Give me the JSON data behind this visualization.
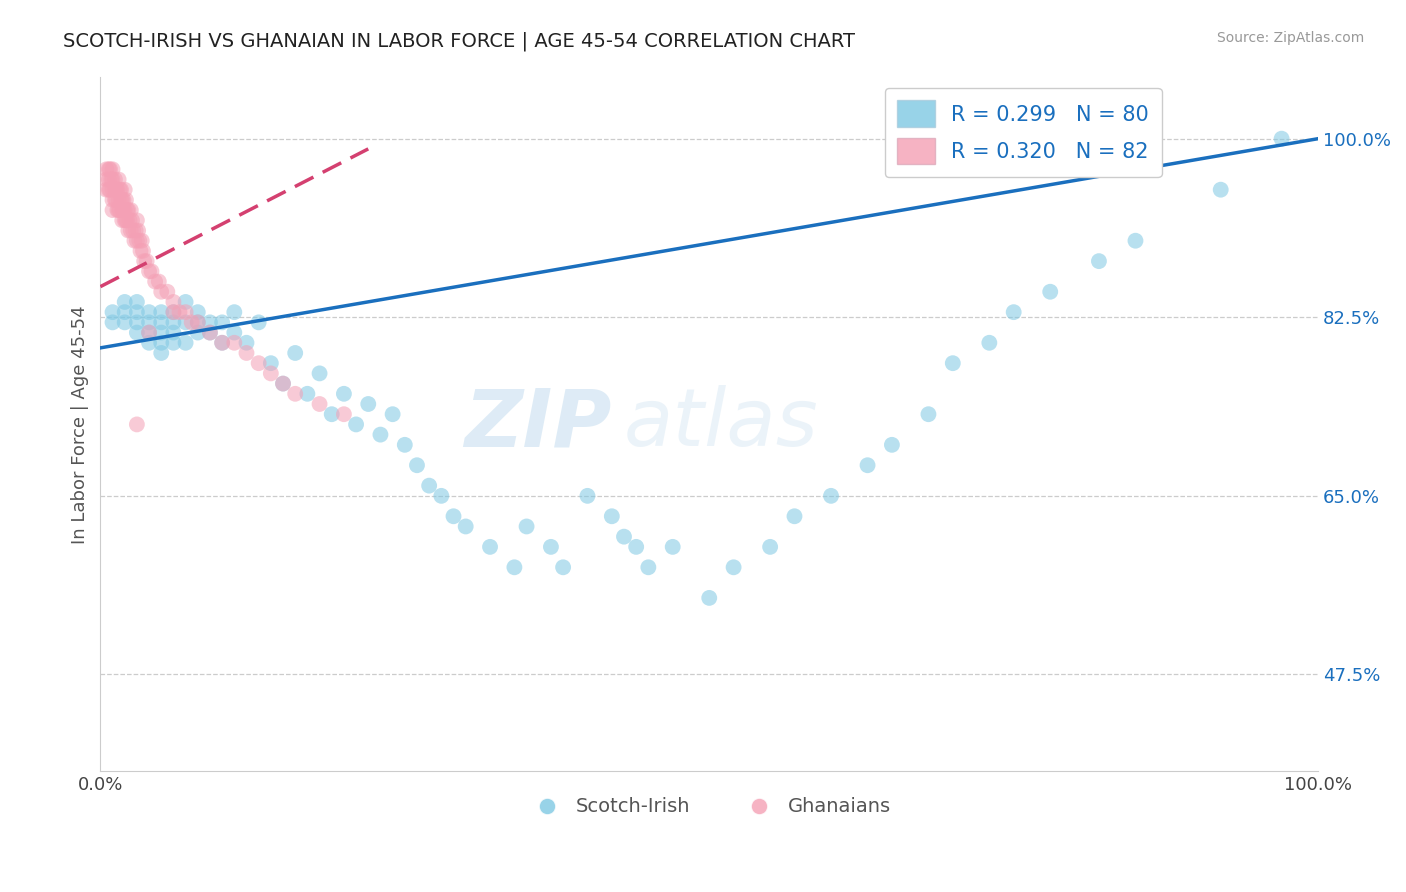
{
  "title": "SCOTCH-IRISH VS GHANAIAN IN LABOR FORCE | AGE 45-54 CORRELATION CHART",
  "source_text": "Source: ZipAtlas.com",
  "ylabel": "In Labor Force | Age 45-54",
  "ytick_labels": [
    "47.5%",
    "65.0%",
    "82.5%",
    "100.0%"
  ],
  "ytick_values": [
    0.475,
    0.65,
    0.825,
    1.0
  ],
  "xlim": [
    0.0,
    1.0
  ],
  "ylim": [
    0.38,
    1.06
  ],
  "blue_color": "#7ec8e3",
  "pink_color": "#f4a0b5",
  "blue_line_color": "#1a6fbe",
  "pink_line_color": "#d44070",
  "R_blue": 0.299,
  "N_blue": 80,
  "R_pink": 0.32,
  "N_pink": 82,
  "watermark_zip": "ZIP",
  "watermark_atlas": "atlas",
  "scotch_irish_x": [
    0.01,
    0.01,
    0.02,
    0.02,
    0.02,
    0.03,
    0.03,
    0.03,
    0.03,
    0.04,
    0.04,
    0.04,
    0.04,
    0.05,
    0.05,
    0.05,
    0.05,
    0.05,
    0.06,
    0.06,
    0.06,
    0.06,
    0.07,
    0.07,
    0.07,
    0.08,
    0.08,
    0.08,
    0.09,
    0.09,
    0.1,
    0.1,
    0.11,
    0.11,
    0.12,
    0.13,
    0.14,
    0.15,
    0.16,
    0.17,
    0.18,
    0.19,
    0.2,
    0.21,
    0.22,
    0.23,
    0.24,
    0.25,
    0.26,
    0.27,
    0.28,
    0.29,
    0.3,
    0.32,
    0.34,
    0.35,
    0.37,
    0.38,
    0.4,
    0.42,
    0.43,
    0.44,
    0.45,
    0.47,
    0.5,
    0.52,
    0.55,
    0.57,
    0.6,
    0.63,
    0.65,
    0.68,
    0.7,
    0.73,
    0.75,
    0.78,
    0.82,
    0.85,
    0.92,
    0.97
  ],
  "scotch_irish_y": [
    0.83,
    0.82,
    0.84,
    0.83,
    0.82,
    0.83,
    0.82,
    0.84,
    0.81,
    0.83,
    0.82,
    0.81,
    0.8,
    0.83,
    0.82,
    0.81,
    0.8,
    0.79,
    0.83,
    0.82,
    0.81,
    0.8,
    0.84,
    0.82,
    0.8,
    0.83,
    0.82,
    0.81,
    0.82,
    0.81,
    0.82,
    0.8,
    0.83,
    0.81,
    0.8,
    0.82,
    0.78,
    0.76,
    0.79,
    0.75,
    0.77,
    0.73,
    0.75,
    0.72,
    0.74,
    0.71,
    0.73,
    0.7,
    0.68,
    0.66,
    0.65,
    0.63,
    0.62,
    0.6,
    0.58,
    0.62,
    0.6,
    0.58,
    0.65,
    0.63,
    0.61,
    0.6,
    0.58,
    0.6,
    0.55,
    0.58,
    0.6,
    0.63,
    0.65,
    0.68,
    0.7,
    0.73,
    0.78,
    0.8,
    0.83,
    0.85,
    0.88,
    0.9,
    0.95,
    1.0
  ],
  "ghanaian_x": [
    0.005,
    0.005,
    0.005,
    0.007,
    0.007,
    0.007,
    0.008,
    0.008,
    0.009,
    0.01,
    0.01,
    0.01,
    0.01,
    0.01,
    0.012,
    0.012,
    0.012,
    0.013,
    0.013,
    0.014,
    0.014,
    0.015,
    0.015,
    0.015,
    0.016,
    0.016,
    0.017,
    0.017,
    0.018,
    0.018,
    0.018,
    0.019,
    0.019,
    0.02,
    0.02,
    0.02,
    0.021,
    0.021,
    0.022,
    0.022,
    0.023,
    0.023,
    0.024,
    0.025,
    0.025,
    0.026,
    0.027,
    0.028,
    0.029,
    0.03,
    0.03,
    0.031,
    0.032,
    0.033,
    0.034,
    0.035,
    0.036,
    0.038,
    0.04,
    0.042,
    0.045,
    0.048,
    0.05,
    0.055,
    0.06,
    0.065,
    0.07,
    0.075,
    0.08,
    0.09,
    0.1,
    0.11,
    0.12,
    0.13,
    0.14,
    0.15,
    0.16,
    0.18,
    0.2,
    0.04,
    0.06,
    0.03
  ],
  "ghanaian_y": [
    0.97,
    0.96,
    0.95,
    0.97,
    0.96,
    0.95,
    0.97,
    0.95,
    0.96,
    0.97,
    0.96,
    0.95,
    0.94,
    0.93,
    0.96,
    0.95,
    0.94,
    0.95,
    0.94,
    0.95,
    0.93,
    0.96,
    0.94,
    0.93,
    0.95,
    0.93,
    0.95,
    0.94,
    0.94,
    0.93,
    0.92,
    0.94,
    0.93,
    0.95,
    0.93,
    0.92,
    0.94,
    0.92,
    0.93,
    0.92,
    0.93,
    0.91,
    0.92,
    0.93,
    0.91,
    0.92,
    0.91,
    0.9,
    0.91,
    0.92,
    0.9,
    0.91,
    0.9,
    0.89,
    0.9,
    0.89,
    0.88,
    0.88,
    0.87,
    0.87,
    0.86,
    0.86,
    0.85,
    0.85,
    0.84,
    0.83,
    0.83,
    0.82,
    0.82,
    0.81,
    0.8,
    0.8,
    0.79,
    0.78,
    0.77,
    0.76,
    0.75,
    0.74,
    0.73,
    0.81,
    0.83,
    0.72
  ],
  "blue_line_x0": 0.0,
  "blue_line_y0": 0.795,
  "blue_line_x1": 1.0,
  "blue_line_y1": 1.0,
  "pink_line_x0": 0.0,
  "pink_line_x1": 0.22,
  "pink_line_y0": 0.855,
  "pink_line_y1": 0.99
}
